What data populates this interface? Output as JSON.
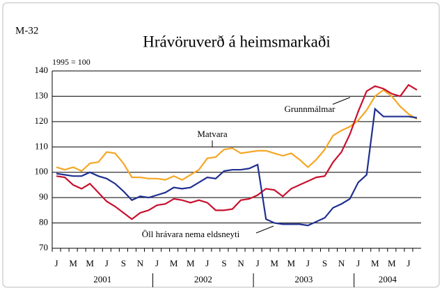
{
  "chart_data": {
    "type": "line",
    "label": "M-32",
    "title": "Hrávöruverð á heimsmarkaði",
    "subtitle": "1995 = 100",
    "categories": [
      "J",
      null,
      "M",
      null,
      "M",
      null,
      "J",
      null,
      "S",
      null,
      "N",
      null,
      "J",
      null,
      "M",
      null,
      "M",
      null,
      "J",
      null,
      "S",
      null,
      "N",
      null,
      "J",
      null,
      "M",
      null,
      "M",
      null,
      "J",
      null,
      "S",
      null,
      "N",
      null,
      "J",
      null,
      "M",
      null,
      "M",
      null,
      "J",
      null
    ],
    "years": [
      "2001",
      "2002",
      "2003",
      "2004"
    ],
    "series": [
      {
        "name": "Matvara",
        "color": "#f5a623",
        "values": [
          102,
          101,
          102,
          100.5,
          103.5,
          104,
          108,
          107.5,
          103.5,
          98,
          98,
          97.5,
          97.5,
          97,
          98.5,
          97,
          99,
          101,
          105.5,
          106,
          109,
          109.5,
          107.5,
          108,
          108.5,
          108.5,
          107.5,
          106.5,
          107.5,
          105,
          102,
          105,
          109,
          114.5,
          116.5,
          118,
          120.5,
          124.5,
          130,
          132.5,
          130,
          126,
          123,
          121
        ]
      },
      {
        "name": "Grunnmálmar",
        "color": "#c8102e",
        "values": [
          98.5,
          98,
          95,
          93.5,
          95.5,
          92,
          88.5,
          86.5,
          84,
          81.5,
          84,
          85,
          87,
          87.5,
          89.5,
          89,
          88,
          89,
          88,
          85,
          85,
          85.5,
          89,
          89.5,
          91,
          93.5,
          93,
          90.5,
          93.5,
          95,
          96.5,
          98,
          98.5,
          104,
          108,
          115,
          124,
          132,
          134,
          133,
          131,
          130,
          134.5,
          132.5
        ]
      },
      {
        "name": "Öll hrávara nema eldsneyti",
        "color": "#1f2f8f",
        "values": [
          99.5,
          99,
          98.5,
          98.5,
          100,
          98.5,
          97.5,
          95.5,
          92.5,
          89,
          90.5,
          90,
          91,
          92,
          94,
          93.5,
          94,
          96,
          98,
          97.5,
          100.5,
          101,
          101,
          101.5,
          103,
          81.5,
          80,
          79.5,
          79.5,
          79.5,
          79,
          80.5,
          82,
          86,
          87.5,
          89.5,
          96,
          99,
          125,
          122,
          122,
          122,
          122,
          121.5
        ]
      }
    ],
    "ylim": [
      70,
      140
    ],
    "yticks": [
      70,
      80,
      90,
      100,
      110,
      120,
      130,
      140
    ],
    "grid": true
  }
}
